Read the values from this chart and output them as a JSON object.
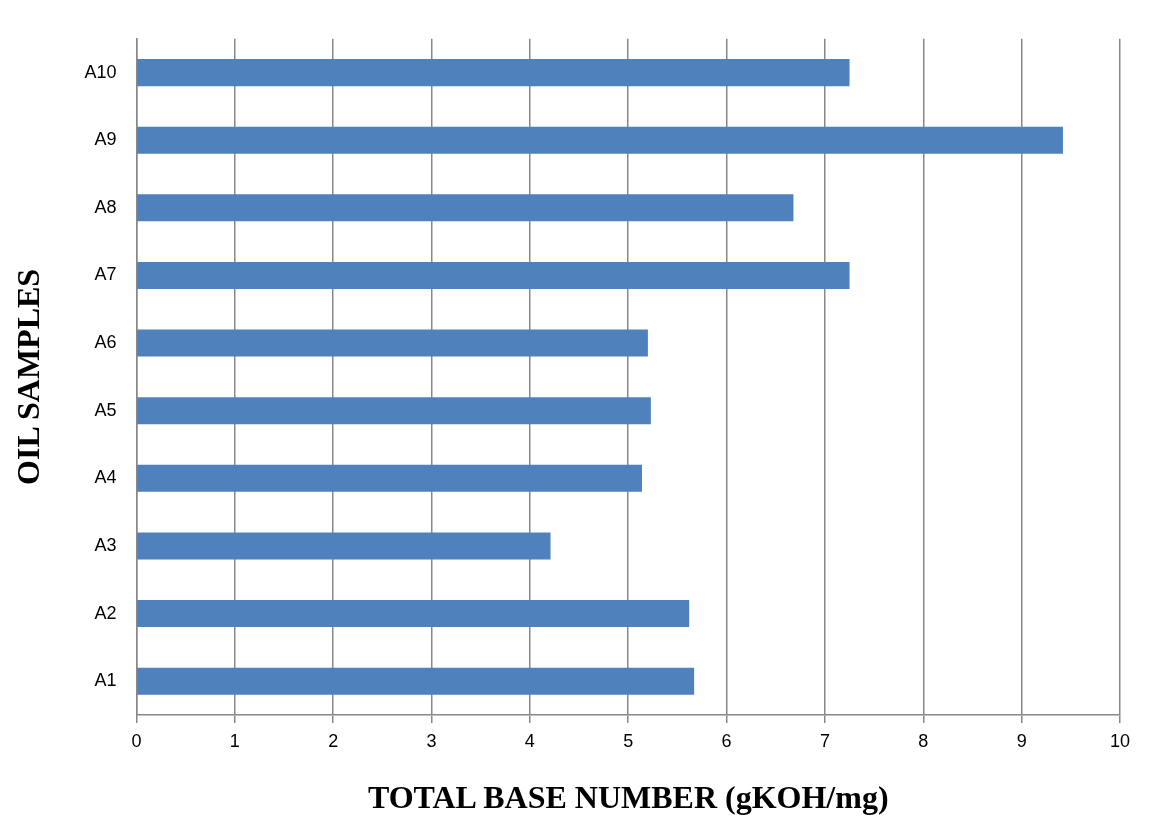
{
  "chart_data": {
    "type": "bar",
    "orientation": "horizontal",
    "xlabel": "TOTAL BASE NUMBER (gKOH/mg)",
    "ylabel": "OIL SAMPLES",
    "categories": [
      "A10",
      "A9",
      "A8",
      "A7",
      "A6",
      "A5",
      "A4",
      "A3",
      "A2",
      "A1"
    ],
    "values": [
      7.25,
      9.42,
      6.68,
      7.25,
      5.2,
      5.23,
      5.14,
      4.21,
      5.62,
      5.67
    ],
    "color": "#4f81bd",
    "xlim": [
      0,
      10
    ],
    "xticks": [
      0,
      1,
      2,
      3,
      4,
      5,
      6,
      7,
      8,
      9,
      10
    ],
    "grid": "x",
    "legend": false
  }
}
